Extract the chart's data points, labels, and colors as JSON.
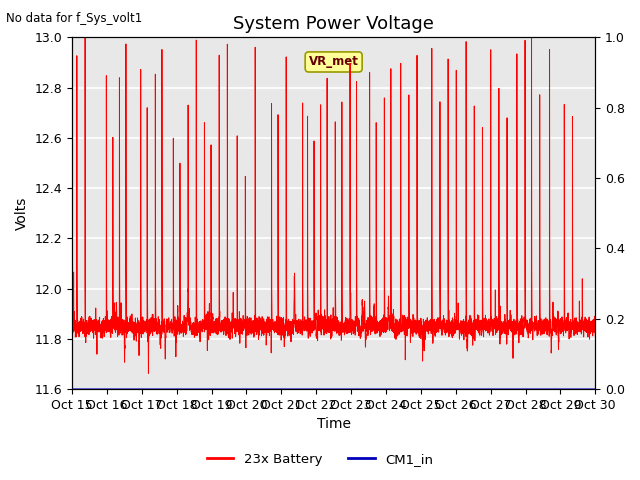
{
  "title": "System Power Voltage",
  "no_data_label": "No data for f_Sys_volt1",
  "xlabel": "Time",
  "ylabel": "Volts",
  "ylim_left": [
    11.6,
    13.0
  ],
  "ylim_right": [
    0.0,
    1.0
  ],
  "xtick_labels": [
    "Oct 15",
    "Oct 16",
    "Oct 17",
    "Oct 18",
    "Oct 19",
    "Oct 20",
    "Oct 21",
    "Oct 22",
    "Oct 23",
    "Oct 24",
    "Oct 25",
    "Oct 26",
    "Oct 27",
    "Oct 28",
    "Oct 29",
    "Oct 30"
  ],
  "battery_color": "#ff0000",
  "cm1_color": "#0000bb",
  "background_color": "#e8e8e8",
  "grid_color": "#ffffff",
  "vr_met_label": "VR_met",
  "vr_met_bg": "#ffff99",
  "vr_met_border": "#999900",
  "legend_labels": [
    "23x Battery",
    "CM1_in"
  ],
  "title_fontsize": 13,
  "label_fontsize": 10,
  "tick_fontsize": 9
}
